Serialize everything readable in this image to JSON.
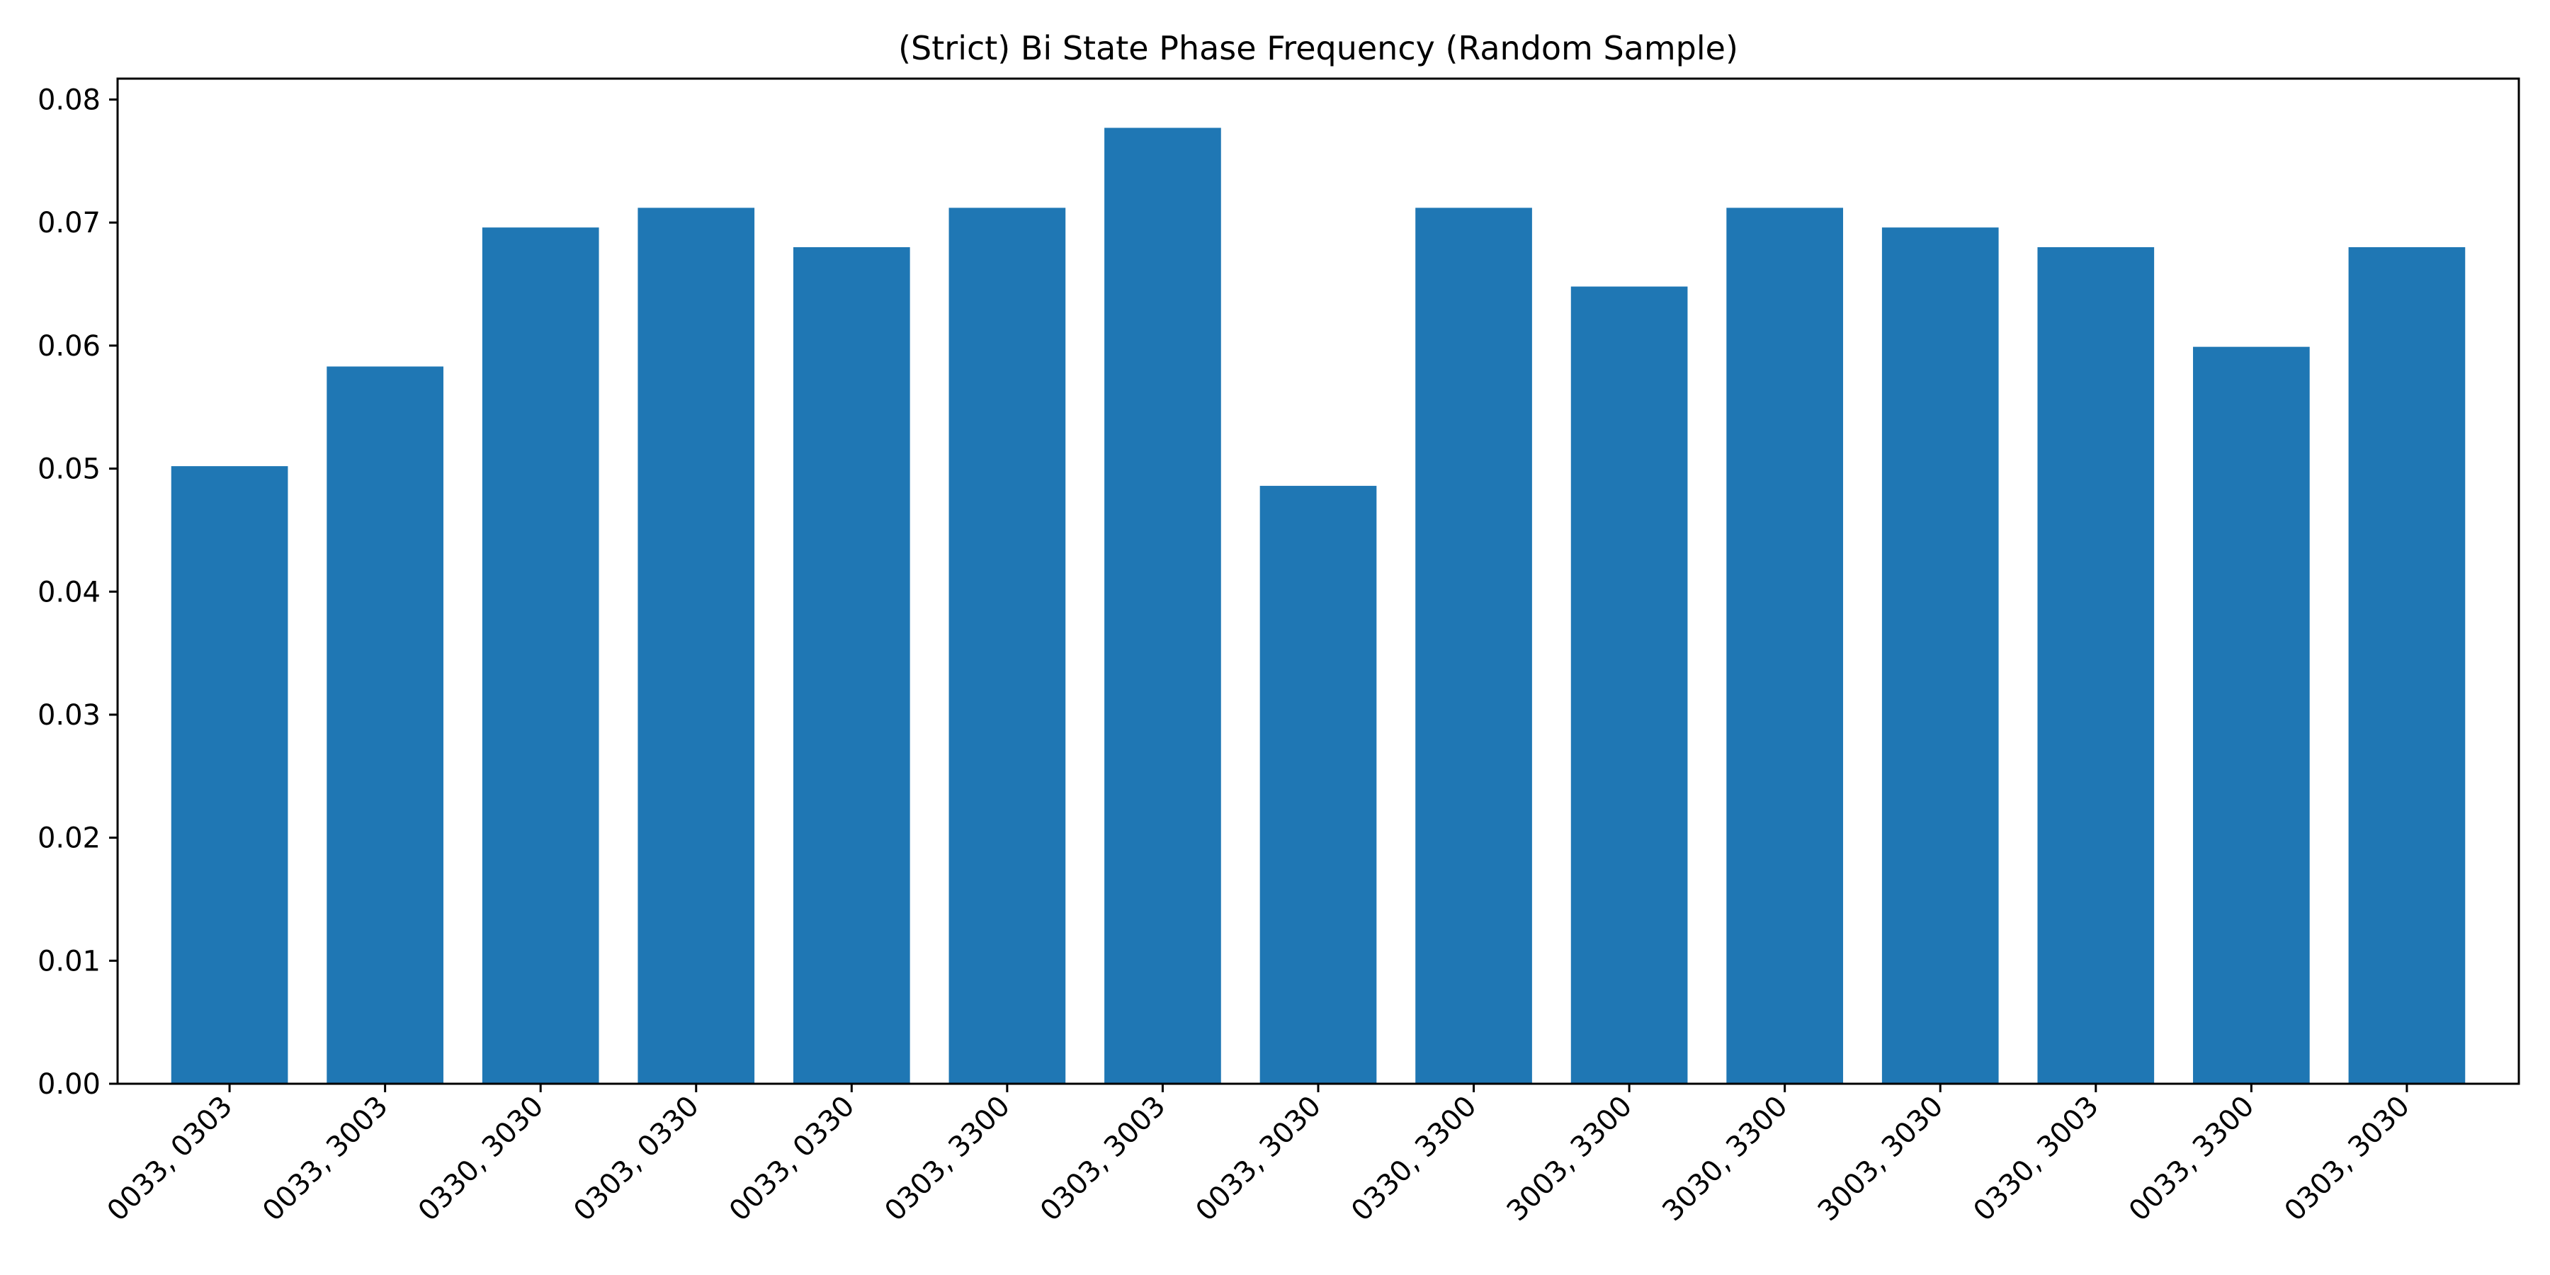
{
  "chart_data": {
    "type": "bar",
    "title": "(Strict) Bi State Phase Frequency (Random Sample)",
    "xlabel": "",
    "ylabel": "",
    "categories": [
      "0033, 0303",
      "0033, 3003",
      "0330, 3030",
      "0303, 0330",
      "0033, 0330",
      "0303, 3300",
      "0303, 3003",
      "0033, 3030",
      "0330, 3300",
      "3003, 3300",
      "3030, 3300",
      "3003, 3030",
      "0330, 3003",
      "0033, 3300",
      "0303, 3030"
    ],
    "values": [
      0.0502,
      0.0583,
      0.0696,
      0.0712,
      0.068,
      0.0712,
      0.0777,
      0.0486,
      0.0712,
      0.0648,
      0.0712,
      0.0696,
      0.068,
      0.0599,
      0.068
    ],
    "ylim": [
      0,
      0.0817
    ],
    "yticks": [
      "0.00",
      "0.01",
      "0.02",
      "0.03",
      "0.04",
      "0.05",
      "0.06",
      "0.07",
      "0.08"
    ],
    "ytick_values": [
      0,
      0.01,
      0.02,
      0.03,
      0.04,
      0.05,
      0.06,
      0.07,
      0.08
    ],
    "bar_color": "#1f77b4",
    "grid": false,
    "legend": "none",
    "xtick_rotation_deg": 45
  }
}
